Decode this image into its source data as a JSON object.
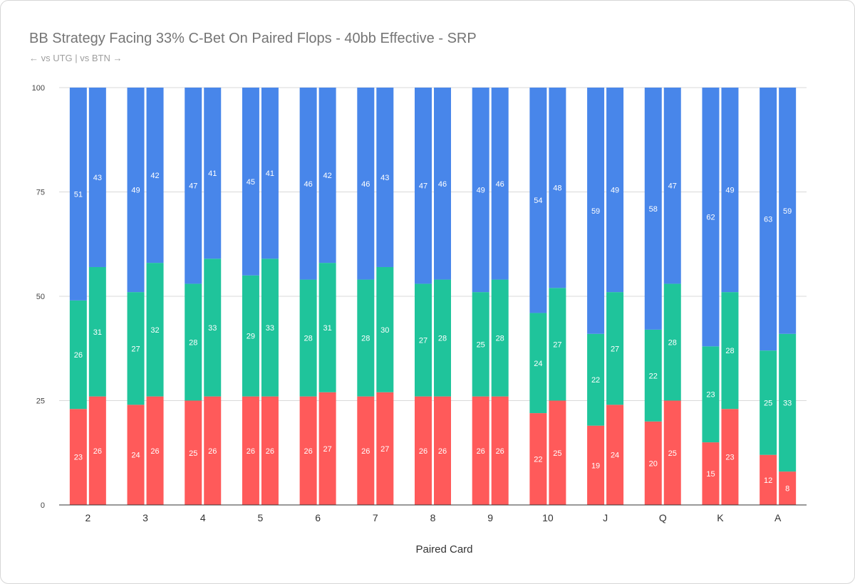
{
  "header": {
    "title": "BB Strategy Facing 33% C-Bet On Paired Flops - 40bb Effective - SRP",
    "subtitle": "← vs UTG | vs BTN →"
  },
  "chart_data": {
    "type": "bar",
    "stacked": true,
    "grouped_pairs": [
      "vs UTG",
      "vs BTN"
    ],
    "categories": [
      "2",
      "3",
      "4",
      "5",
      "6",
      "7",
      "8",
      "9",
      "10",
      "J",
      "Q",
      "K",
      "A"
    ],
    "xlabel": "Paired Card",
    "ylabel": "",
    "ylim": [
      0,
      100
    ],
    "yticks": [
      0,
      25,
      50,
      75,
      100
    ],
    "grid": true,
    "legend": "none",
    "colors": {
      "bottom": "#ff5a5a",
      "middle": "#1fc49b",
      "top": "#4886ea"
    },
    "groups": {
      "vs UTG": {
        "bottom": [
          23,
          24,
          25,
          26,
          26,
          26,
          26,
          26,
          22,
          19,
          20,
          15,
          12
        ],
        "middle": [
          26,
          27,
          28,
          29,
          28,
          28,
          27,
          25,
          24,
          22,
          22,
          23,
          25
        ],
        "top": [
          51,
          49,
          47,
          45,
          46,
          46,
          47,
          49,
          54,
          59,
          58,
          62,
          63
        ]
      },
      "vs BTN": {
        "bottom": [
          26,
          26,
          26,
          26,
          27,
          27,
          26,
          26,
          25,
          24,
          25,
          23,
          8
        ],
        "middle": [
          31,
          32,
          33,
          33,
          31,
          30,
          28,
          28,
          27,
          27,
          28,
          28,
          33
        ],
        "top": [
          43,
          42,
          41,
          41,
          42,
          43,
          46,
          46,
          48,
          49,
          47,
          49,
          59
        ]
      }
    }
  }
}
